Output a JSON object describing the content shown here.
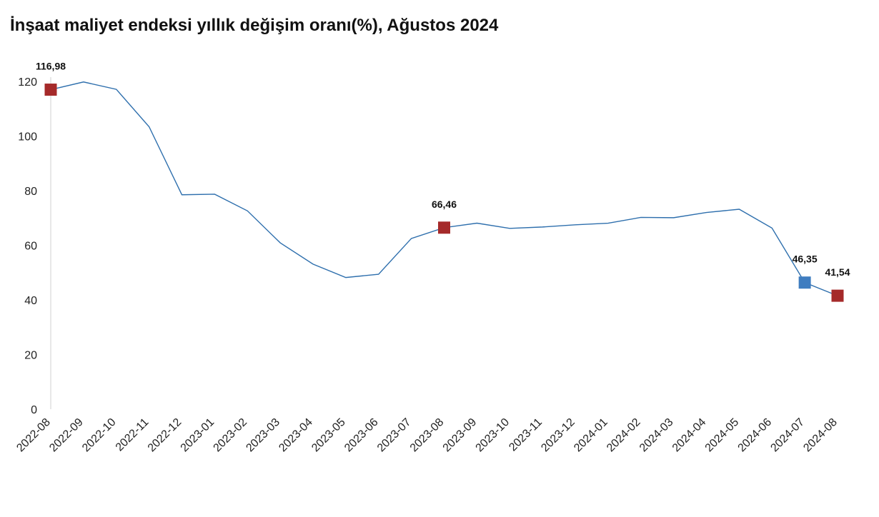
{
  "title": "İnşaat maliyet endeksi yıllık değişim oranı(%), Ağustos 2024",
  "chart_data": {
    "type": "line",
    "title": "İnşaat maliyet endeksi yıllık değişim oranı(%), Ağustos 2024",
    "xlabel": "",
    "ylabel": "",
    "ylim": [
      0,
      120
    ],
    "yticks": [
      0,
      20,
      40,
      60,
      80,
      100,
      120
    ],
    "grid": false,
    "categories": [
      "2022-08",
      "2022-09",
      "2022-10",
      "2022-11",
      "2022-12",
      "2023-01",
      "2023-02",
      "2023-03",
      "2023-04",
      "2023-05",
      "2023-06",
      "2023-07",
      "2023-08",
      "2023-09",
      "2023-10",
      "2023-11",
      "2023-12",
      "2024-01",
      "2024-02",
      "2024-03",
      "2024-04",
      "2024-05",
      "2024-06",
      "2024-07",
      "2024-08"
    ],
    "series": [
      {
        "color": "#2e6fad",
        "values": [
          116.98,
          119.8,
          117.1,
          103.4,
          78.5,
          78.7,
          72.6,
          60.9,
          53.1,
          48.2,
          49.4,
          62.5,
          66.46,
          68.1,
          66.2,
          66.7,
          67.5,
          68.1,
          70.2,
          70.1,
          72.0,
          73.2,
          66.3,
          46.35,
          41.54
        ]
      }
    ],
    "highlighted_points": [
      {
        "index": 0,
        "label": "116,98",
        "color": "#a52a2a"
      },
      {
        "index": 12,
        "label": "66,46",
        "color": "#a52a2a"
      },
      {
        "index": 23,
        "label": "46,35",
        "color": "#3f7dc0"
      },
      {
        "index": 24,
        "label": "41,54",
        "color": "#a52a2a"
      }
    ]
  }
}
